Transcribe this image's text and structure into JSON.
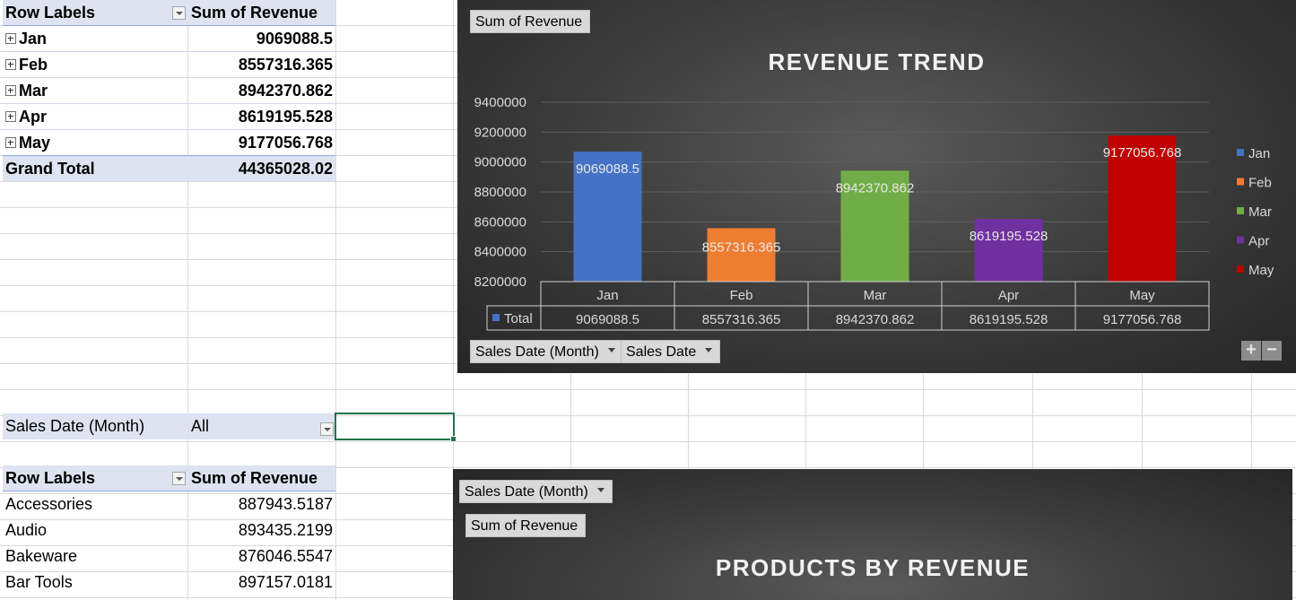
{
  "pivot_top": {
    "header": {
      "row_labels": "Row Labels",
      "value_col": "Sum of Revenue"
    },
    "rows": [
      {
        "label": "Jan",
        "value": "9069088.5"
      },
      {
        "label": "Feb",
        "value": "8557316.365"
      },
      {
        "label": "Mar",
        "value": "8942370.862"
      },
      {
        "label": "Apr",
        "value": "8619195.528"
      },
      {
        "label": "May",
        "value": "9177056.768"
      }
    ],
    "grand_total": {
      "label": "Grand Total",
      "value": "44365028.02"
    }
  },
  "filter": {
    "label": "Sales Date (Month)",
    "value": "All"
  },
  "pivot_bottom": {
    "header": {
      "row_labels": "Row Labels",
      "value_col": "Sum of Revenue"
    },
    "rows": [
      {
        "label": "Accessories",
        "value": "887943.5187"
      },
      {
        "label": "Audio",
        "value": "893435.2199"
      },
      {
        "label": "Bakeware",
        "value": "876046.5547"
      },
      {
        "label": "Bar Tools",
        "value": "897157.0181"
      }
    ]
  },
  "chart1": {
    "value_button": "Sum of Revenue",
    "axis_button_1": "Sales Date (Month)",
    "axis_button_2": "Sales Date",
    "zoom_in": "+",
    "zoom_out": "−",
    "table_series_label": "Total"
  },
  "chart2": {
    "axis_button": "Sales Date (Month)",
    "value_button": "Sum of Revenue",
    "title": "PRODUCTS BY REVENUE"
  },
  "chart_data": {
    "type": "bar",
    "title": "REVENUE TREND",
    "categories": [
      "Jan",
      "Feb",
      "Mar",
      "Apr",
      "May"
    ],
    "series": [
      {
        "name": "Total",
        "values": [
          9069088.5,
          8557316.365,
          8942370.862,
          8619195.528,
          9177056.768
        ]
      }
    ],
    "value_labels": [
      "9069088.5",
      "8557316.365",
      "8942370.862",
      "8619195.528",
      "9177056.768"
    ],
    "bar_colors": [
      "#4472c4",
      "#ed7d31",
      "#70ad47",
      "#7030a0",
      "#c00000"
    ],
    "legend": [
      "Jan",
      "Feb",
      "Mar",
      "Apr",
      "May"
    ],
    "legend_position": "right",
    "y_ticks": [
      "9400000",
      "9200000",
      "9000000",
      "8800000",
      "8600000",
      "8400000",
      "8200000"
    ],
    "ylim": [
      8200000,
      9400000
    ],
    "grid": true
  }
}
